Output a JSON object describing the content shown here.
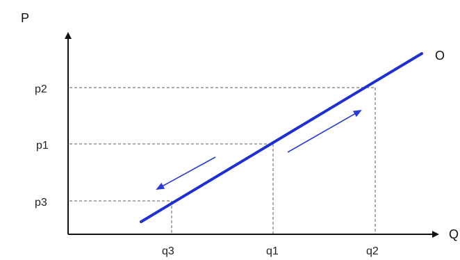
{
  "diagram": {
    "axes": {
      "y_label": "P",
      "x_label": "Q"
    },
    "curve_label": "O",
    "price_levels": [
      {
        "key": "p2",
        "label": "p2",
        "quantity_key": "q2"
      },
      {
        "key": "p1",
        "label": "p1",
        "quantity_key": "q1"
      },
      {
        "key": "p3",
        "label": "p3",
        "quantity_key": "q3"
      }
    ],
    "quantity_levels": [
      {
        "key": "q3",
        "label": "q3"
      },
      {
        "key": "q1",
        "label": "q1"
      },
      {
        "key": "q2",
        "label": "q2"
      }
    ],
    "arrows": [
      {
        "name": "movement-up-arrow",
        "direction": "up-right"
      },
      {
        "name": "movement-down-arrow",
        "direction": "down-left"
      }
    ],
    "colors": {
      "curve": "#1f2fd6",
      "axes": "#111111",
      "dashes": "#555555",
      "arrows": "#2a3bd8"
    }
  }
}
